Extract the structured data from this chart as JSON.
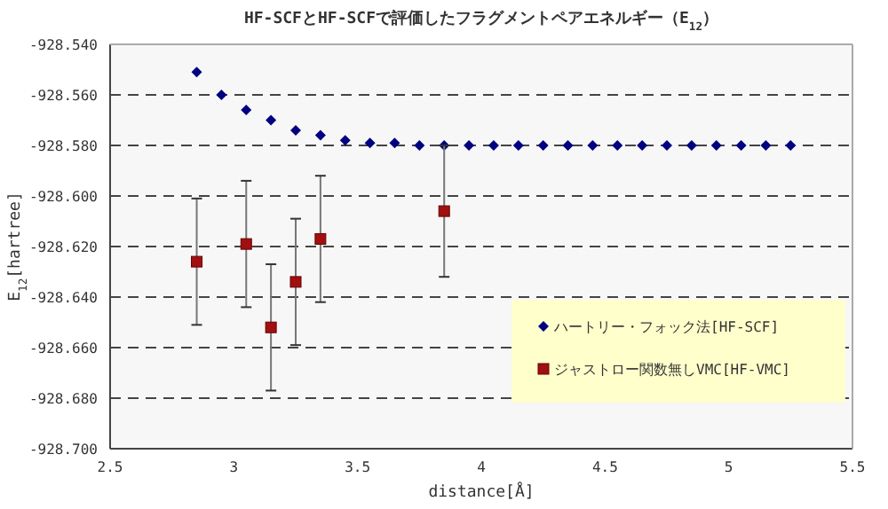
{
  "chart_data": {
    "type": "scatter",
    "title": "HF-SCFとHF-SCFで評価したフラグメントペアエネルギー（E$_{12}$）",
    "xlabel": "distance[Å]",
    "ylabel": "E$_{12}$[hartree]",
    "xlim": [
      2.5,
      5.5
    ],
    "xticks": [
      2.5,
      3,
      3.5,
      4,
      4.5,
      5,
      5.5
    ],
    "ylim": [
      -928.7,
      -928.54
    ],
    "yticks": [
      {
        "value": -928.54,
        "label": "-928.540"
      },
      {
        "value": -928.56,
        "label": "-928.560"
      },
      {
        "value": -928.58,
        "label": "-928.580"
      },
      {
        "value": -928.6,
        "label": "-928.600"
      },
      {
        "value": -928.62,
        "label": "-928.620"
      },
      {
        "value": -928.64,
        "label": "-928.640"
      },
      {
        "value": -928.66,
        "label": "-928.660"
      },
      {
        "value": -928.68,
        "label": "-928.680"
      },
      {
        "value": -928.7,
        "label": "-928.700"
      }
    ],
    "grid": "y",
    "line_style": "dashed",
    "legend": "bottom right",
    "series": [
      {
        "name": "ハートリー・フォック法[HF-SCF]",
        "color": "#000080",
        "marker": "diamond",
        "x": [
          2.85,
          2.95,
          3.05,
          3.15,
          3.25,
          3.35,
          3.45,
          3.55,
          3.65,
          3.75,
          3.85,
          3.95,
          4.05,
          4.15,
          4.25,
          4.35,
          4.45,
          4.55,
          4.65,
          4.75,
          4.85,
          4.95,
          5.05,
          5.15,
          5.25
        ],
        "values": [
          -928.551,
          -928.56,
          -928.566,
          -928.57,
          -928.574,
          -928.576,
          -928.578,
          -928.579,
          -928.579,
          -928.58,
          -928.58,
          -928.58,
          -928.58,
          -928.58,
          -928.58,
          -928.58,
          -928.58,
          -928.58,
          -928.58,
          -928.58,
          -928.58,
          -928.58,
          -928.58,
          -928.58,
          -928.58
        ]
      },
      {
        "name": "ジャストロー関数無しVMC[HF-VMC]",
        "color": "#a01010",
        "marker": "square",
        "x": [
          2.85,
          3.05,
          3.15,
          3.25,
          3.35,
          3.85
        ],
        "values": [
          -928.626,
          -928.619,
          -928.652,
          -928.634,
          -928.617,
          -928.606
        ],
        "errors": [
          0.025,
          0.025,
          0.025,
          0.025,
          0.025,
          0.026
        ]
      }
    ]
  }
}
